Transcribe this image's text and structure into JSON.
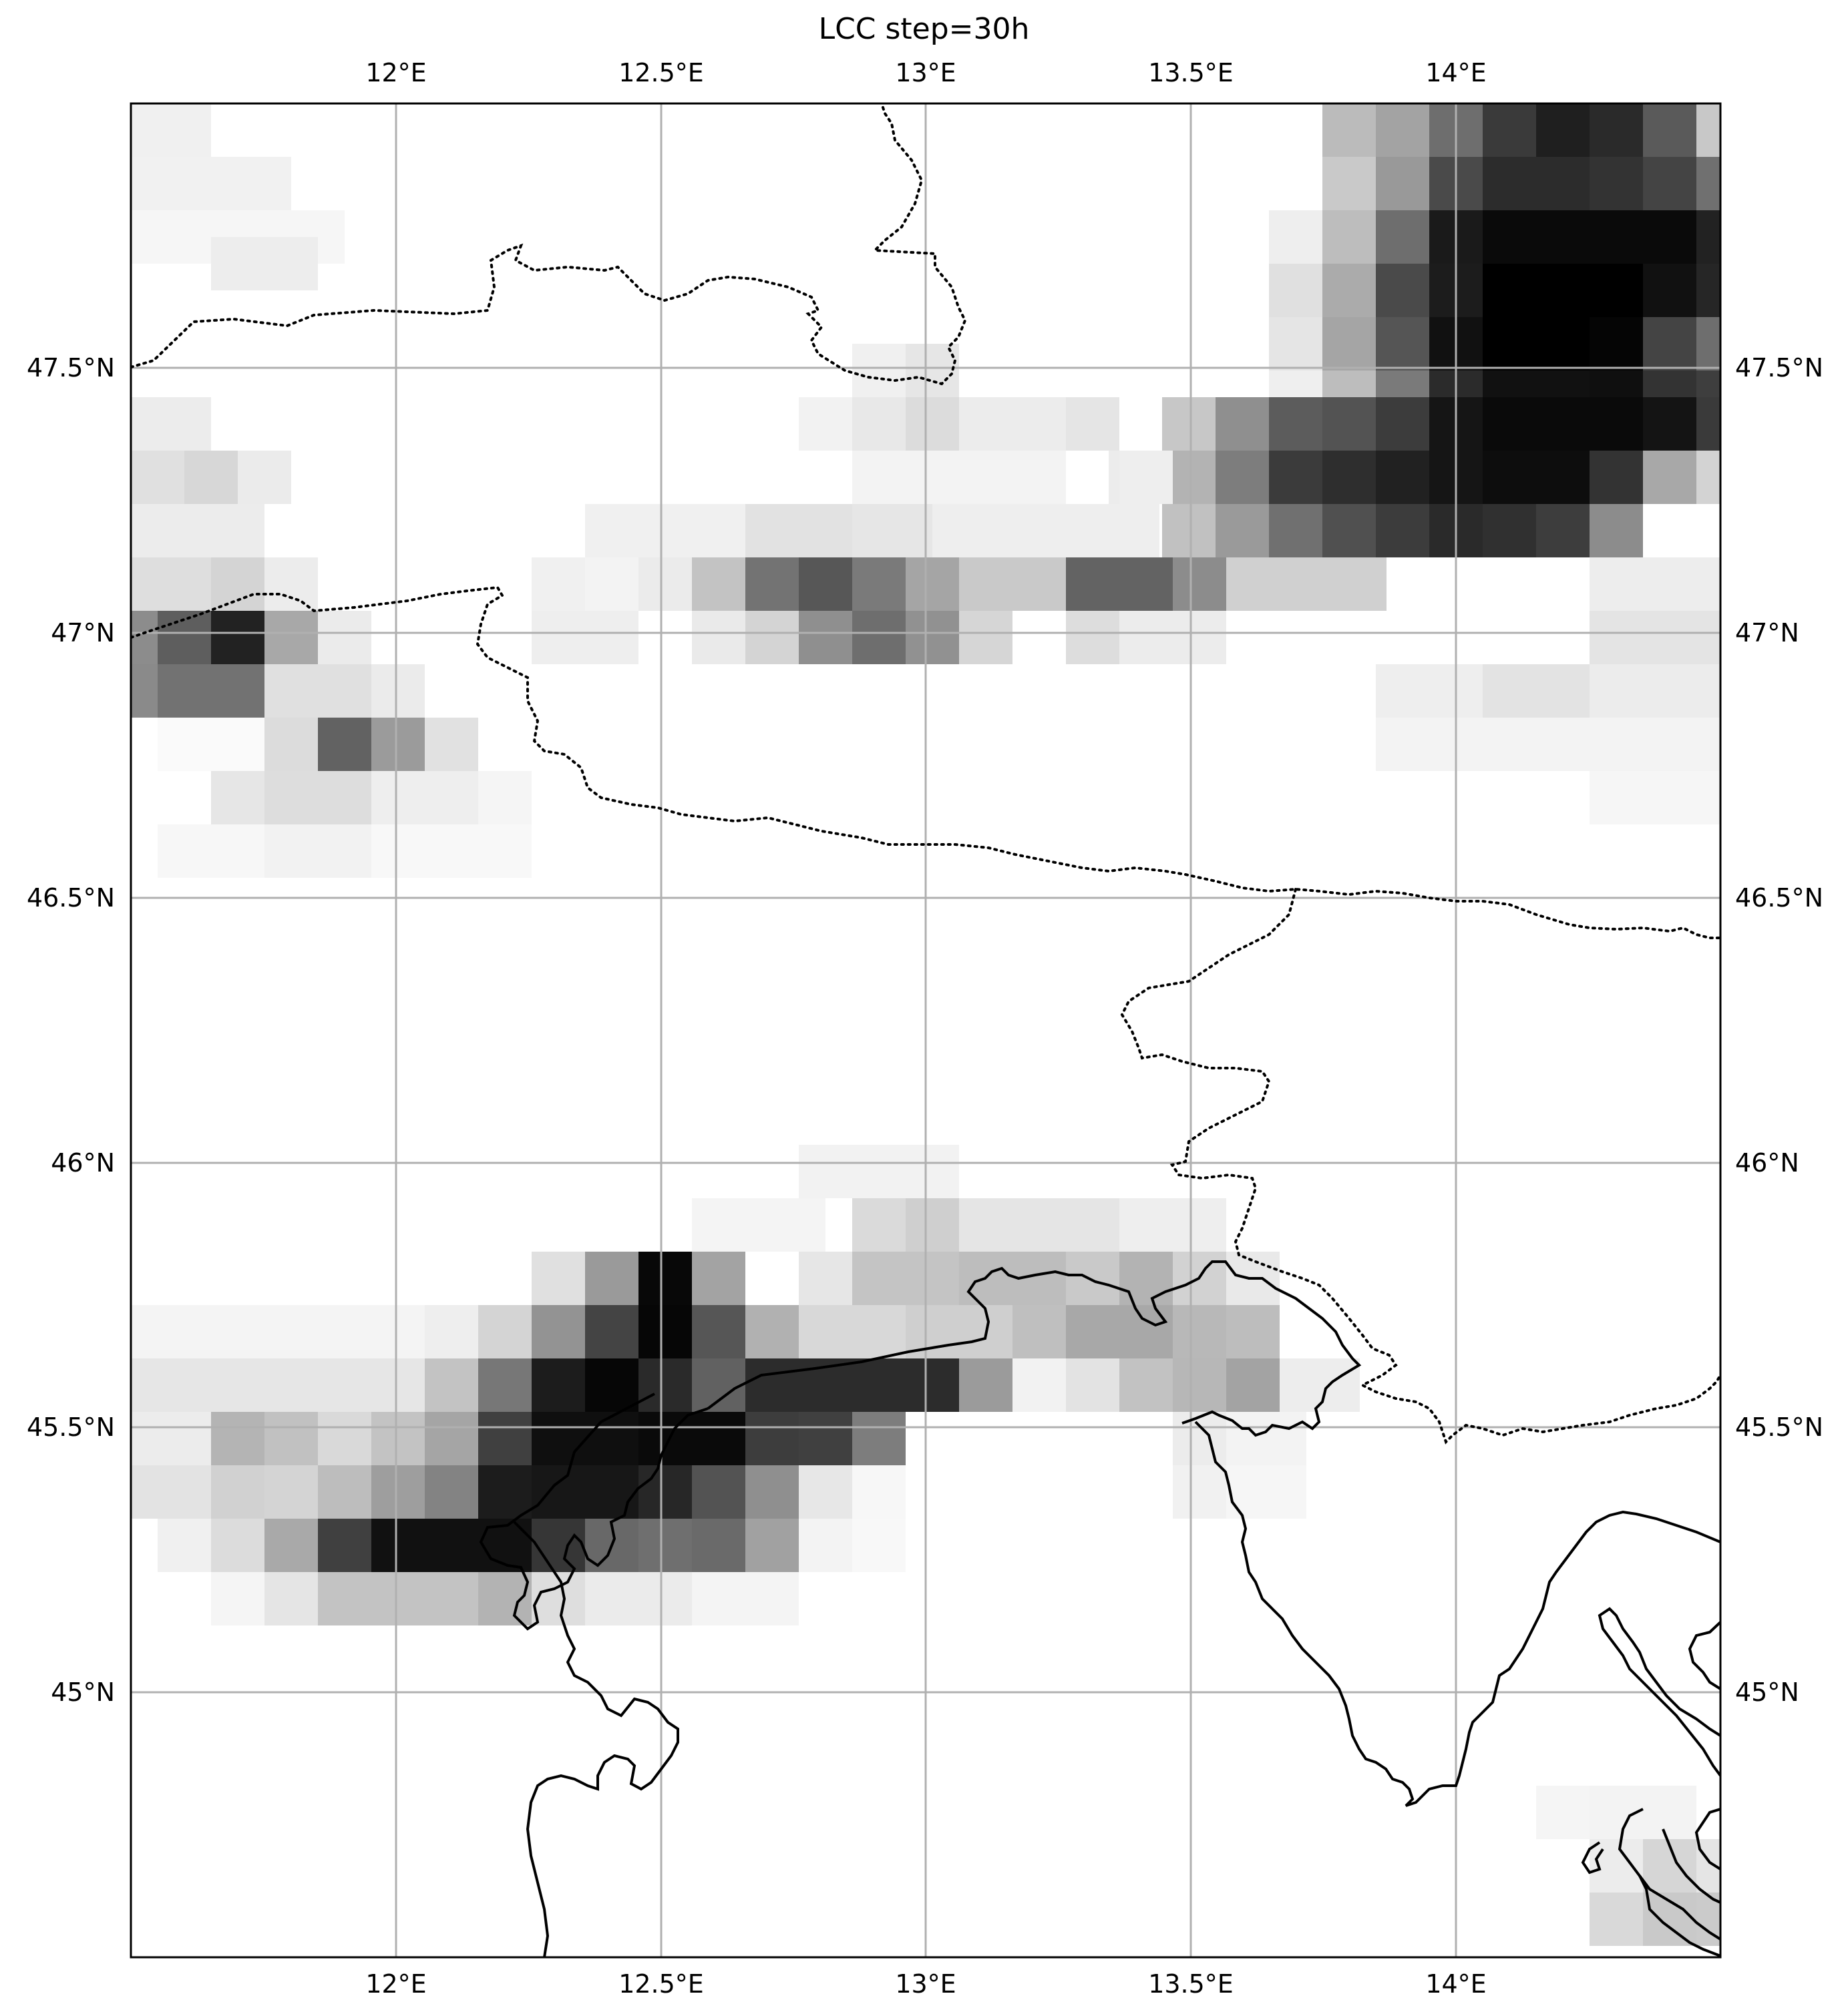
{
  "title": "LCC step=30h",
  "map": {
    "projection": "PlateCarree",
    "extent": {
      "lon_min": 11.5,
      "lon_max": 14.5,
      "lat_min": 44.5,
      "lat_max": 48.0
    },
    "field": "LCC (low cloud cover)",
    "colormap": "greys",
    "value_range": [
      0,
      1
    ],
    "grid_resolution_deg": 0.1,
    "grid": true,
    "coastlines": true,
    "borders": "dotted",
    "lon_ticks": [
      {
        "value": 12.0,
        "label": "12°E"
      },
      {
        "value": 12.5,
        "label": "12.5°E"
      },
      {
        "value": 13.0,
        "label": "13°E"
      },
      {
        "value": 13.5,
        "label": "13.5°E"
      },
      {
        "value": 14.0,
        "label": "14°E"
      }
    ],
    "lat_ticks": [
      {
        "value": 47.5,
        "label": "47.5°N"
      },
      {
        "value": 47.0,
        "label": "47°N"
      },
      {
        "value": 46.5,
        "label": "46.5°N"
      },
      {
        "value": 46.0,
        "label": "46°N"
      },
      {
        "value": 45.5,
        "label": "45.5°N"
      },
      {
        "value": 45.0,
        "label": "45°N"
      }
    ]
  }
}
